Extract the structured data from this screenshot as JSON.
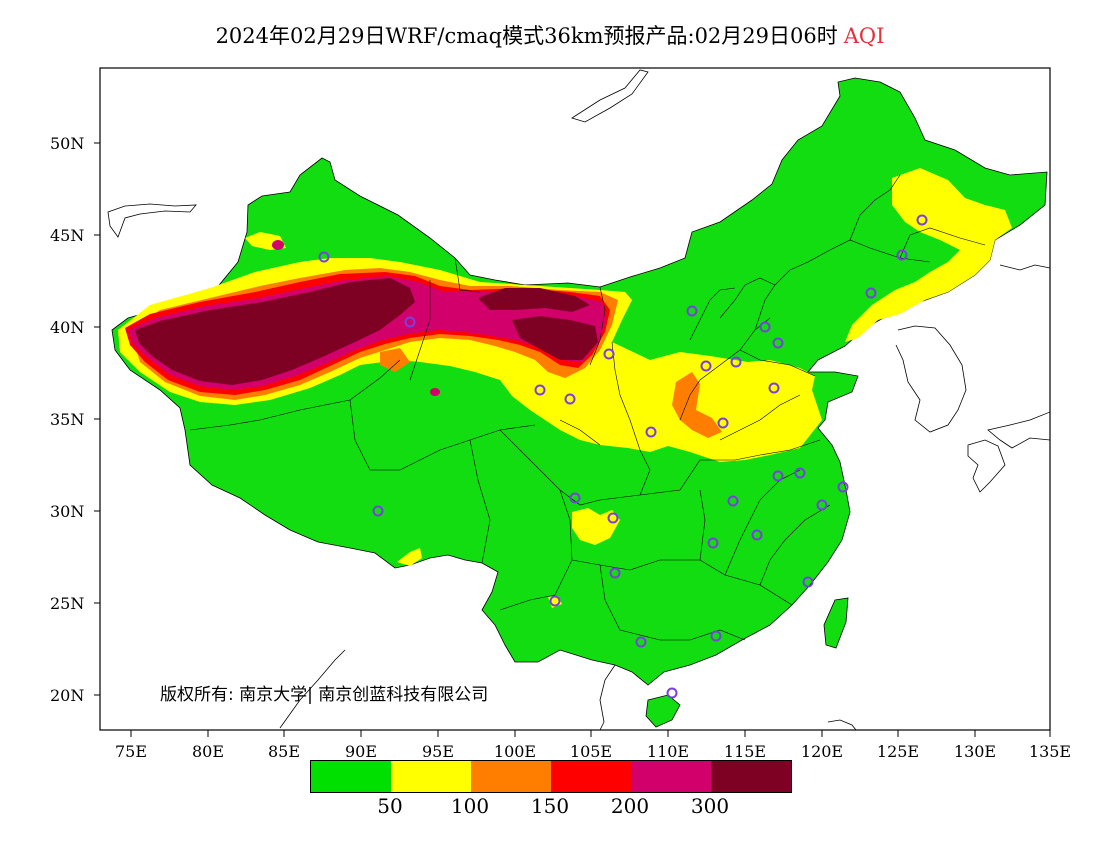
{
  "title": {
    "text": "2024年02月29日WRF/cmaq模式36km预报产品:02月29日06时",
    "variable": "AQI",
    "variable_color": "#e0323c"
  },
  "axes": {
    "lat_labels": [
      "50N",
      "45N",
      "40N",
      "35N",
      "30N",
      "25N",
      "20N"
    ],
    "lon_labels": [
      "75E",
      "80E",
      "85E",
      "90E",
      "95E",
      "100E",
      "105E",
      "110E",
      "115E",
      "120E",
      "125E",
      "130E",
      "135E"
    ]
  },
  "copyright": "版权所有: 南京大学| 南京创蓝科技有限公司",
  "legend": {
    "colors": [
      "#00e000",
      "#ffff00",
      "#ff7e00",
      "#ff0000",
      "#d1006a",
      "#7e0023"
    ],
    "labels": [
      "50",
      "100",
      "150",
      "200",
      "300"
    ]
  },
  "map_colors": {
    "good": "#11dd11",
    "moderate": "#ffff00",
    "usg": "#ff7e00",
    "unhealthy": "#ff0000",
    "very_unhealthy": "#d1006a",
    "hazardous": "#7e0023",
    "station_marker": "#7b3fe0"
  }
}
